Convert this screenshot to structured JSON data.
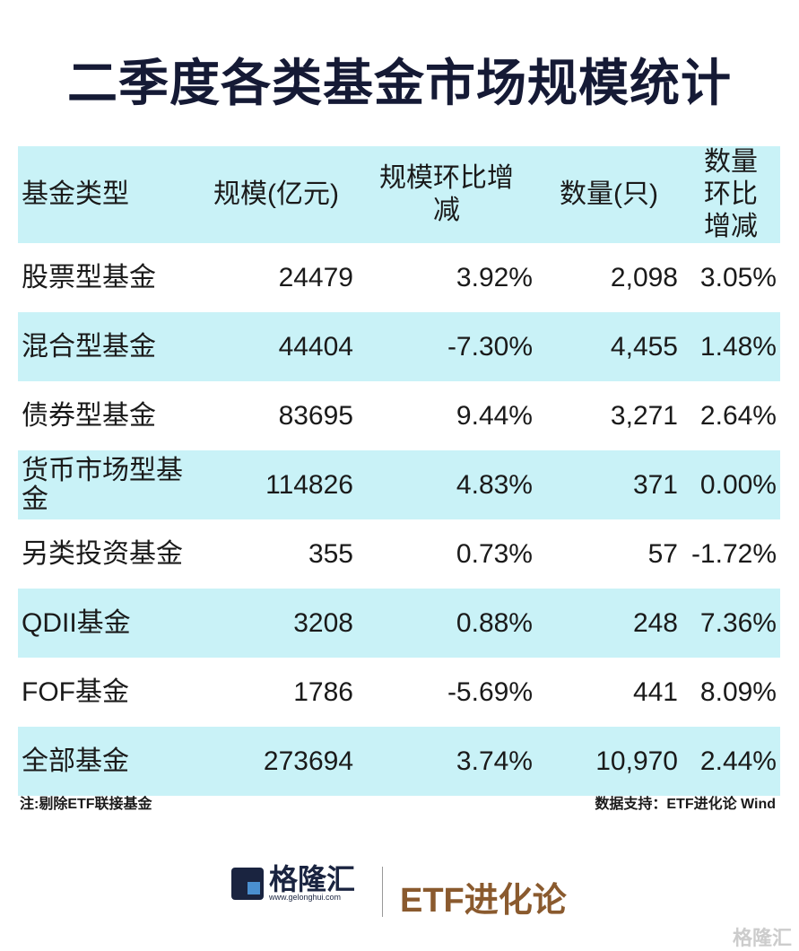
{
  "title": "二季度各类基金市场规模统计",
  "chart_data": {
    "type": "table",
    "title": "二季度各类基金市场规模统计",
    "columns": [
      "基金类型",
      "规模(亿元)",
      "规模环比增减",
      "数量(只)",
      "数量环比增减"
    ],
    "rows": [
      [
        "股票型基金",
        "24479",
        "3.92%",
        "2,098",
        "3.05%"
      ],
      [
        "混合型基金",
        "44404",
        "-7.30%",
        "4,455",
        "1.48%"
      ],
      [
        "债券型基金",
        "83695",
        "9.44%",
        "3,271",
        "2.64%"
      ],
      [
        "货币市场型基金",
        "114826",
        "4.83%",
        "371",
        "0.00%"
      ],
      [
        "另类投资基金",
        "355",
        "0.73%",
        "57",
        "-1.72%"
      ],
      [
        "QDII基金",
        "3208",
        "0.88%",
        "248",
        "7.36%"
      ],
      [
        "FOF基金",
        "1786",
        "-5.69%",
        "441",
        "8.09%"
      ],
      [
        "全部基金",
        "273694",
        "3.74%",
        "10,970",
        "2.44%"
      ]
    ]
  },
  "footer": {
    "note": "注:剔除ETF联接基金",
    "source": "数据支持：ETF进化论 Wind",
    "brand_name": "格隆汇",
    "brand_url": "www.gelonghui.com",
    "partner": "ETF进化论",
    "watermark": "格隆汇"
  },
  "colors": {
    "header_bg": "#c9f2f7",
    "title": "#151a35",
    "partner": "#8a5a2e"
  }
}
